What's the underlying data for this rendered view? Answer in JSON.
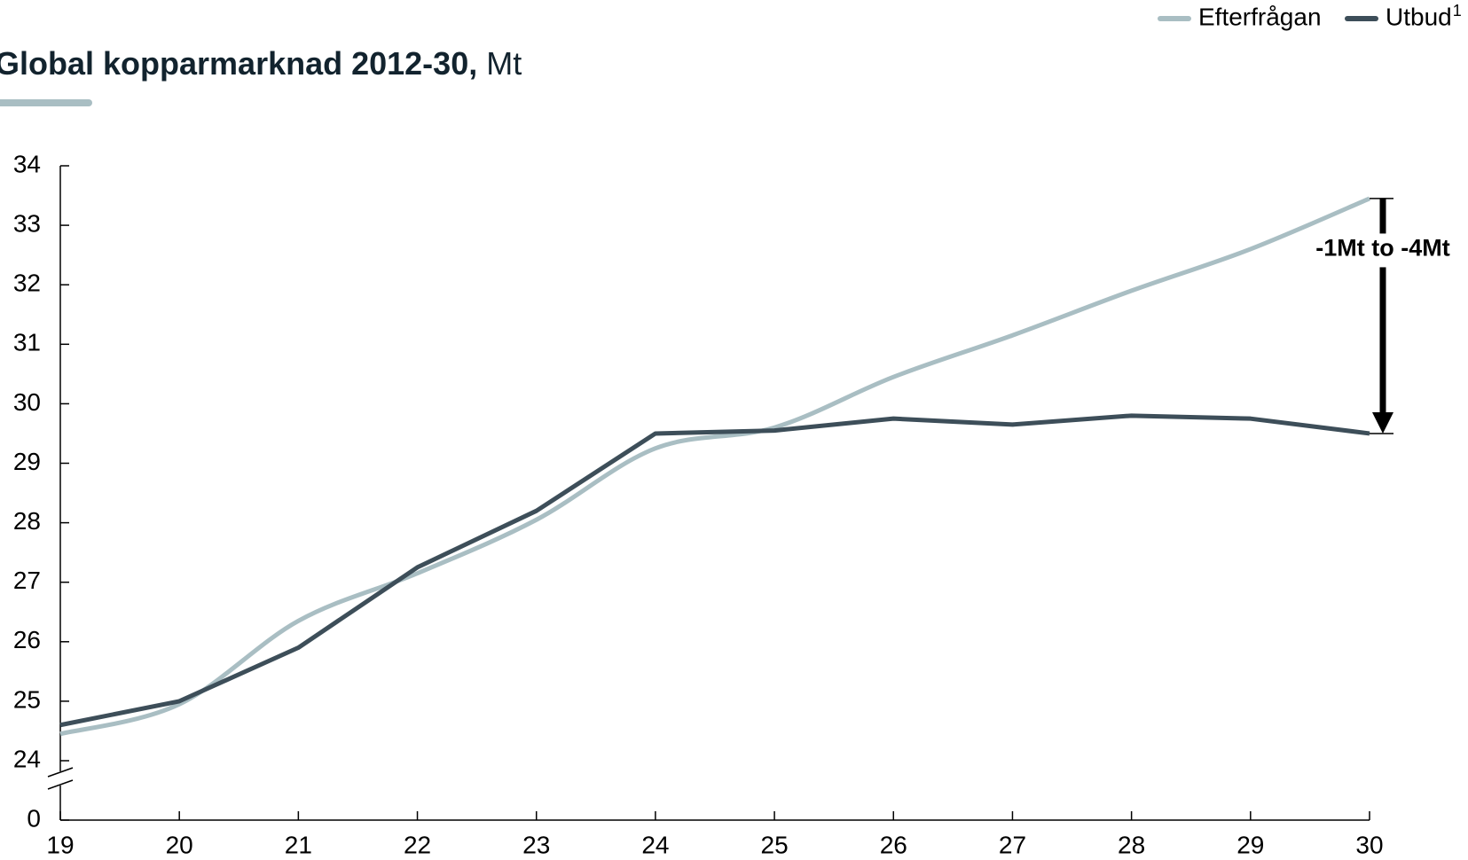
{
  "chart_data": {
    "type": "line",
    "title": "Global kopparmarknad 2012-30,",
    "title_unit": "Mt",
    "annotation": "-1Mt to -4Mt",
    "x": [
      19,
      20,
      21,
      22,
      23,
      24,
      25,
      26,
      27,
      28,
      29,
      30
    ],
    "xlim": [
      19,
      30
    ],
    "xticks": [
      19,
      20,
      21,
      22,
      23,
      24,
      25,
      26,
      27,
      28,
      29,
      30
    ],
    "ylim": [
      24,
      34
    ],
    "yticks": [
      0,
      24,
      25,
      26,
      27,
      28,
      29,
      30,
      31,
      32,
      33,
      34
    ],
    "axis_break": [
      0,
      24
    ],
    "legend": "top-right",
    "series": [
      {
        "name": "Efterfrågan",
        "color": "#a9bec3",
        "smooth": true,
        "values": [
          24.45,
          24.95,
          26.35,
          27.15,
          28.05,
          29.25,
          29.6,
          30.45,
          31.15,
          31.9,
          32.6,
          33.45
        ]
      },
      {
        "name": "Utbud",
        "superscript": "1",
        "color": "#3d4e59",
        "smooth": false,
        "values": [
          24.6,
          25.0,
          25.9,
          27.25,
          28.2,
          29.5,
          29.55,
          29.75,
          29.65,
          29.8,
          29.75,
          29.5
        ]
      }
    ]
  }
}
